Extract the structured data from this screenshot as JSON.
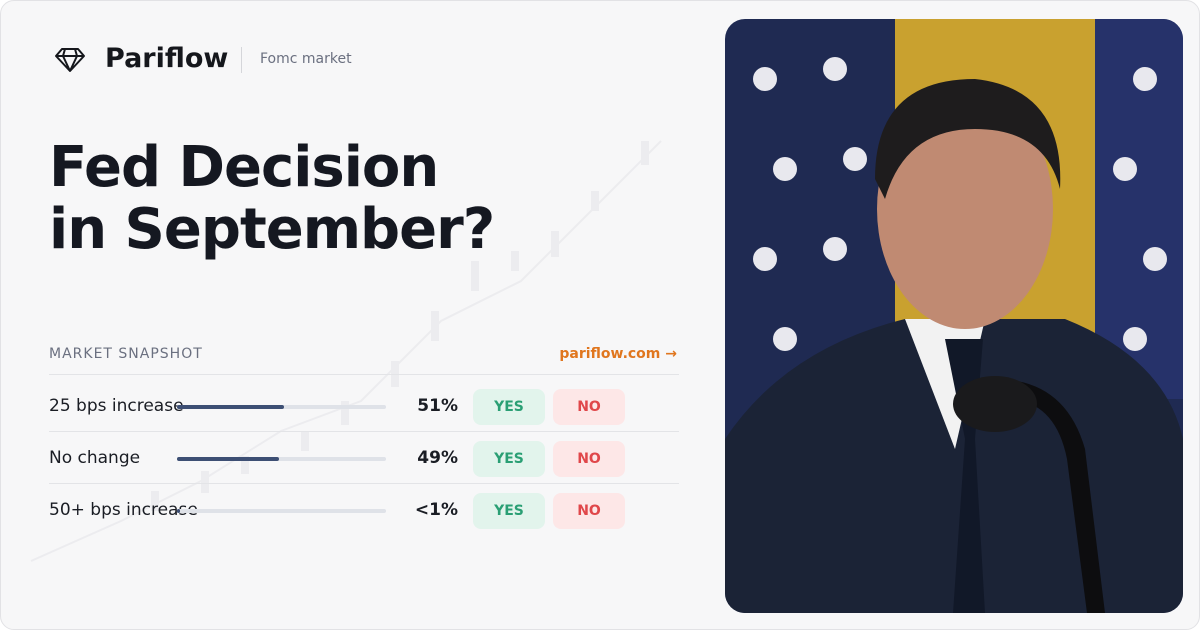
{
  "header": {
    "brand": "Pariflow",
    "section": "Fomc market"
  },
  "title_lines": [
    "Fed Decision",
    "in September?"
  ],
  "snapshot": {
    "label": "MARKET SNAPSHOT",
    "link": "pariflow.com →",
    "rows": [
      {
        "name": "25 bps increase",
        "value": 51,
        "value_label": "51%",
        "yes": "YES",
        "no": "NO"
      },
      {
        "name": "No change",
        "value": 49,
        "value_label": "49%",
        "yes": "YES",
        "no": "NO"
      },
      {
        "name": "50+ bps increase",
        "value": 0.5,
        "value_label": "<1%",
        "yes": "YES",
        "no": "NO"
      }
    ]
  }
}
